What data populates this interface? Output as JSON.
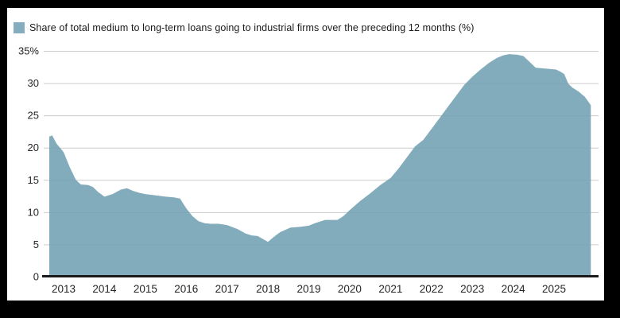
{
  "page": {
    "frame_color": "#000000",
    "card_color": "#ffffff"
  },
  "legend": {
    "label": "Share of total medium to long-term loans going to industrial firms over the preceding 12 months (%)",
    "swatch_color": "#85adbd"
  },
  "chart_data": {
    "type": "area",
    "title": "",
    "xlabel": "",
    "ylabel": "",
    "series_name": "Share of total medium to long-term loans going to industrial firms over the preceding 12 months (%)",
    "xlim": [
      2012.65,
      2025.92
    ],
    "ylim": [
      0,
      35
    ],
    "grid": true,
    "legend_position": "top-left",
    "x_ticks": [
      "2013",
      "2014",
      "2015",
      "2016",
      "2017",
      "2018",
      "2019",
      "2020",
      "2021",
      "2022",
      "2023",
      "2024",
      "2025"
    ],
    "y_ticks": [
      {
        "value": 0,
        "label": "0"
      },
      {
        "value": 5,
        "label": "5"
      },
      {
        "value": 10,
        "label": "10"
      },
      {
        "value": 15,
        "label": "15"
      },
      {
        "value": 20,
        "label": "20"
      },
      {
        "value": 25,
        "label": "25"
      },
      {
        "value": 30,
        "label": "30"
      },
      {
        "value": 35,
        "label": "35%"
      }
    ],
    "points": [
      [
        2012.65,
        21.7
      ],
      [
        2012.72,
        21.9
      ],
      [
        2012.83,
        20.6
      ],
      [
        2013.0,
        19.3
      ],
      [
        2013.15,
        17.0
      ],
      [
        2013.3,
        15.0
      ],
      [
        2013.42,
        14.3
      ],
      [
        2013.6,
        14.2
      ],
      [
        2013.72,
        13.9
      ],
      [
        2013.85,
        13.1
      ],
      [
        2014.0,
        12.4
      ],
      [
        2014.2,
        12.8
      ],
      [
        2014.4,
        13.5
      ],
      [
        2014.55,
        13.7
      ],
      [
        2014.7,
        13.3
      ],
      [
        2014.85,
        13.0
      ],
      [
        2015.0,
        12.8
      ],
      [
        2015.25,
        12.6
      ],
      [
        2015.5,
        12.4
      ],
      [
        2015.7,
        12.3
      ],
      [
        2015.85,
        12.1
      ],
      [
        2016.0,
        10.6
      ],
      [
        2016.15,
        9.4
      ],
      [
        2016.3,
        8.6
      ],
      [
        2016.45,
        8.3
      ],
      [
        2016.6,
        8.2
      ],
      [
        2016.8,
        8.2
      ],
      [
        2017.0,
        8.0
      ],
      [
        2017.25,
        7.4
      ],
      [
        2017.45,
        6.7
      ],
      [
        2017.6,
        6.4
      ],
      [
        2017.75,
        6.3
      ],
      [
        2018.0,
        5.4
      ],
      [
        2018.15,
        6.2
      ],
      [
        2018.3,
        6.9
      ],
      [
        2018.55,
        7.6
      ],
      [
        2018.75,
        7.7
      ],
      [
        2019.0,
        7.9
      ],
      [
        2019.15,
        8.3
      ],
      [
        2019.4,
        8.8
      ],
      [
        2019.7,
        8.8
      ],
      [
        2019.85,
        9.4
      ],
      [
        2020.0,
        10.3
      ],
      [
        2020.25,
        11.7
      ],
      [
        2020.5,
        12.9
      ],
      [
        2020.75,
        14.2
      ],
      [
        2021.0,
        15.3
      ],
      [
        2021.2,
        16.8
      ],
      [
        2021.4,
        18.5
      ],
      [
        2021.6,
        20.2
      ],
      [
        2021.8,
        21.2
      ],
      [
        2022.0,
        22.9
      ],
      [
        2022.2,
        24.6
      ],
      [
        2022.4,
        26.3
      ],
      [
        2022.6,
        28.0
      ],
      [
        2022.8,
        29.7
      ],
      [
        2023.0,
        31.0
      ],
      [
        2023.2,
        32.1
      ],
      [
        2023.4,
        33.1
      ],
      [
        2023.6,
        33.9
      ],
      [
        2023.75,
        34.3
      ],
      [
        2023.9,
        34.5
      ],
      [
        2024.1,
        34.4
      ],
      [
        2024.25,
        34.2
      ],
      [
        2024.45,
        33.0
      ],
      [
        2024.55,
        32.4
      ],
      [
        2024.7,
        32.3
      ],
      [
        2024.9,
        32.2
      ],
      [
        2025.05,
        32.1
      ],
      [
        2025.15,
        31.8
      ],
      [
        2025.25,
        31.4
      ],
      [
        2025.35,
        29.9
      ],
      [
        2025.45,
        29.3
      ],
      [
        2025.6,
        28.7
      ],
      [
        2025.75,
        27.9
      ],
      [
        2025.9,
        26.6
      ]
    ],
    "colors": {
      "area_fill": "rgba(113,160,178,0.88)",
      "gridline": "#cccccc",
      "axis_line": "#1a1a1a",
      "tick_text": "#262626"
    }
  }
}
